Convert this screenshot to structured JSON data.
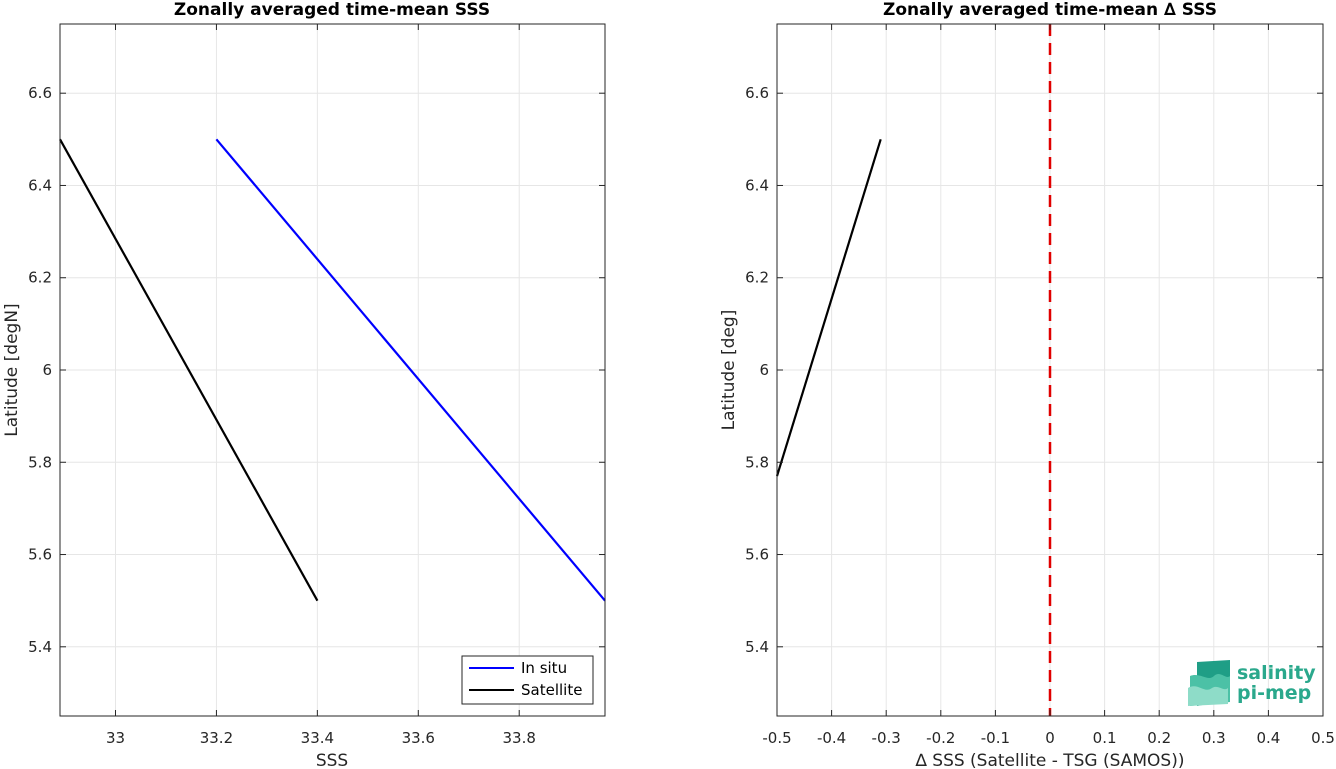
{
  "chart_data": [
    {
      "type": "line",
      "title": "Zonally averaged time-mean SSS",
      "xlabel": "SSS",
      "ylabel": "Latitude [degN]",
      "xlim": [
        32.89,
        33.97
      ],
      "ylim": [
        5.25,
        6.75
      ],
      "xticks": [
        33,
        33.2,
        33.4,
        33.6,
        33.8
      ],
      "xticklabels": [
        "33",
        "33.2",
        "33.4",
        "33.6",
        "33.8"
      ],
      "yticks": [
        5.4,
        5.6,
        5.8,
        6,
        6.2,
        6.4,
        6.6
      ],
      "yticklabels": [
        "5.4",
        "5.6",
        "5.8",
        "6",
        "6.2",
        "6.4",
        "6.6"
      ],
      "grid": true,
      "legend_position": "bottom-right",
      "series": [
        {
          "name": "In situ",
          "color": "#0000ff",
          "x": [
            33.2,
            33.97
          ],
          "y": [
            6.5,
            5.5
          ]
        },
        {
          "name": "Satellite",
          "color": "#000000",
          "x": [
            32.89,
            33.4
          ],
          "y": [
            6.5,
            5.5
          ]
        }
      ]
    },
    {
      "type": "line",
      "title": "Zonally averaged time-mean ∆ SSS",
      "xlabel": "∆ SSS (Satellite - TSG (SAMOS))",
      "ylabel": "Latitude [deg]",
      "xlim": [
        -0.5,
        0.5
      ],
      "ylim": [
        5.25,
        6.75
      ],
      "xticks": [
        -0.5,
        -0.4,
        -0.3,
        -0.2,
        -0.1,
        0,
        0.1,
        0.2,
        0.3,
        0.4,
        0.5
      ],
      "xticklabels": [
        "-0.5",
        "-0.4",
        "-0.3",
        "-0.2",
        "-0.1",
        "0",
        "0.1",
        "0.2",
        "0.3",
        "0.4",
        "0.5"
      ],
      "yticks": [
        5.4,
        5.6,
        5.8,
        6,
        6.2,
        6.4,
        6.6
      ],
      "yticklabels": [
        "5.4",
        "5.6",
        "5.8",
        "6",
        "6.2",
        "6.4",
        "6.6"
      ],
      "grid": true,
      "reference_line": {
        "x": 0,
        "color": "#e00000",
        "style": "dashed"
      },
      "series": [
        {
          "color": "#000000",
          "x": [
            -0.5,
            -0.31
          ],
          "y": [
            5.77,
            6.5
          ]
        }
      ]
    }
  ],
  "logo": {
    "line1": "salinity",
    "line2": "pi-mep",
    "color": "#2aa88c"
  }
}
